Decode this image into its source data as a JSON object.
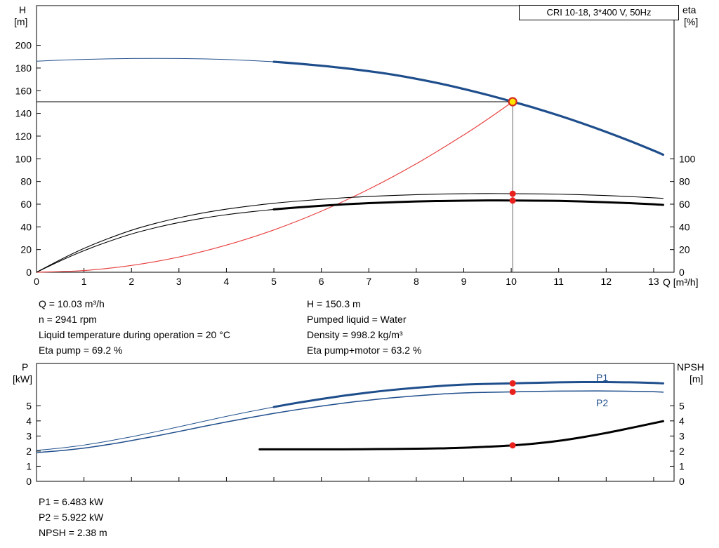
{
  "labels": {
    "h": "H",
    "h_unit": "[m]",
    "eta": "eta",
    "eta_unit": "[%]",
    "q": "Q [m³/h]",
    "p": "P",
    "p_unit": "[kW]",
    "npsh": "NPSH",
    "npsh_unit": "[m]",
    "p1": "P1",
    "p2": "P2"
  },
  "annotations": {
    "top_left": [
      "Q = 10.03 m³/h",
      "n = 2941 rpm",
      "Liquid temperature during operation = 20 °C",
      "Eta pump = 69.2 %"
    ],
    "top_right": [
      "H = 150.3 m",
      "Pumped liquid = Water",
      "Density = 998.2 kg/m³",
      "Eta pump+motor = 63.2 %"
    ],
    "bottom": [
      "P1 = 6.483 kW",
      "P2 = 5.922 kW",
      "NPSH = 2.38 m"
    ]
  },
  "chart_data": [
    {
      "type": "line",
      "title": "CRI 10-18, 3*400 V, 50Hz",
      "x_axis": {
        "label": "Q [m³/h]",
        "min": 0,
        "max": 13.43,
        "ticks": [
          0,
          1,
          2,
          3,
          4,
          5,
          6,
          7,
          8,
          9,
          10,
          11,
          12,
          13
        ]
      },
      "y_left": {
        "label": "H [m]",
        "min": 0,
        "max": 235,
        "ticks": [
          0,
          20,
          40,
          60,
          80,
          100,
          120,
          140,
          160,
          180,
          200
        ]
      },
      "y_right": {
        "label": "eta [%]",
        "min": 0,
        "max": 235,
        "ticks": [
          0,
          20,
          40,
          60,
          80,
          100
        ]
      },
      "grid": false,
      "legend": "none",
      "duty_point": {
        "q": 10.03,
        "h": 150.3,
        "eta_pump": 69.2,
        "eta_pump_motor": 63.2
      },
      "series": [
        {
          "name": "head-curve-thin",
          "color": "#1f4e8c",
          "width": 1,
          "points": [
            [
              0,
              186
            ],
            [
              0.5,
              186.9
            ],
            [
              1,
              187.6
            ],
            [
              1.5,
              188.1
            ],
            [
              2,
              188.4
            ],
            [
              2.5,
              188.5
            ],
            [
              3,
              188.4
            ],
            [
              3.5,
              188.1
            ],
            [
              4,
              187.5
            ],
            [
              4.5,
              186.6
            ],
            [
              5,
              185.5
            ]
          ]
        },
        {
          "name": "head-curve",
          "color": "#1f4e8c",
          "width": 3.2,
          "points": [
            [
              5,
              185.5
            ],
            [
              5.5,
              183.9
            ],
            [
              6,
              182
            ],
            [
              6.5,
              179.8
            ],
            [
              7,
              177.2
            ],
            [
              7.5,
              174.2
            ],
            [
              8,
              170.5
            ],
            [
              8.5,
              166.3
            ],
            [
              9,
              161.5
            ],
            [
              9.5,
              156.3
            ],
            [
              10.03,
              150.3
            ],
            [
              10.5,
              144.7
            ],
            [
              11,
              138.2
            ],
            [
              11.5,
              131.2
            ],
            [
              12,
              123.7
            ],
            [
              12.5,
              115.7
            ],
            [
              13,
              107.2
            ],
            [
              13.2,
              103.6
            ]
          ]
        },
        {
          "name": "system-curve",
          "color": "#e84040",
          "width": 1.2,
          "points": [
            [
              0,
              0
            ],
            [
              1,
              1.5
            ],
            [
              2,
              6
            ],
            [
              3,
              13.4
            ],
            [
              4,
              23.9
            ],
            [
              5,
              37.3
            ],
            [
              6,
              53.8
            ],
            [
              7,
              73.2
            ],
            [
              8,
              95.6
            ],
            [
              9,
              121
            ],
            [
              9.5,
              134.8
            ],
            [
              10.03,
              150.3
            ]
          ]
        },
        {
          "name": "eta-pump-curve",
          "color": "#000000",
          "width": 1.1,
          "points": [
            [
              0,
              0
            ],
            [
              0.5,
              11
            ],
            [
              1,
              21
            ],
            [
              1.5,
              29.5
            ],
            [
              2,
              37
            ],
            [
              2.5,
              43
            ],
            [
              3,
              48
            ],
            [
              3.5,
              52.2
            ],
            [
              4,
              55.6
            ],
            [
              4.5,
              58.4
            ],
            [
              5,
              60.8
            ],
            [
              5.5,
              62.7
            ],
            [
              6,
              64.3
            ],
            [
              6.5,
              65.7
            ],
            [
              7,
              66.8
            ],
            [
              7.5,
              67.7
            ],
            [
              8,
              68.4
            ],
            [
              8.5,
              68.9
            ],
            [
              9,
              69.2
            ],
            [
              9.5,
              69.4
            ],
            [
              10.03,
              69.2
            ],
            [
              10.5,
              69.1
            ],
            [
              11,
              68.8
            ],
            [
              11.5,
              68.3
            ],
            [
              12,
              67.6
            ],
            [
              12.5,
              66.7
            ],
            [
              13,
              65.6
            ],
            [
              13.2,
              65.1
            ]
          ]
        },
        {
          "name": "eta-pump-motor-curve-thin",
          "color": "#000000",
          "width": 1.1,
          "points": [
            [
              0,
              0
            ],
            [
              0.5,
              10
            ],
            [
              1,
              19
            ],
            [
              1.5,
              26.8
            ],
            [
              2,
              33.7
            ],
            [
              2.5,
              39.2
            ],
            [
              3,
              43.8
            ],
            [
              3.5,
              47.6
            ],
            [
              4,
              50.7
            ],
            [
              4.5,
              53.2
            ],
            [
              5,
              55.4
            ]
          ]
        },
        {
          "name": "eta-pump-motor-curve",
          "color": "#000000",
          "width": 3,
          "points": [
            [
              5,
              55.4
            ],
            [
              5.5,
              57.1
            ],
            [
              6,
              58.6
            ],
            [
              6.5,
              59.9
            ],
            [
              7,
              60.9
            ],
            [
              7.5,
              61.7
            ],
            [
              8,
              62.4
            ],
            [
              8.5,
              62.8
            ],
            [
              9,
              63.1
            ],
            [
              9.5,
              63.3
            ],
            [
              10.03,
              63.2
            ],
            [
              10.5,
              63.1
            ],
            [
              11,
              62.9
            ],
            [
              11.5,
              62.4
            ],
            [
              12,
              61.7
            ],
            [
              12.5,
              60.9
            ],
            [
              13,
              59.9
            ],
            [
              13.2,
              59.4
            ]
          ]
        }
      ],
      "ref_lines": [
        {
          "type": "h",
          "y": 150.3,
          "x1": 0,
          "x2": 10.03,
          "color": "#000000",
          "width": 1
        },
        {
          "type": "v",
          "x": 10.03,
          "y1": 0,
          "y2": 150.3,
          "color": "#666666",
          "width": 1
        }
      ],
      "markers": [
        {
          "name": "eta-pump-dot",
          "x": 10.03,
          "y": 69.2,
          "r": 4.5,
          "fill": "#e8211d"
        },
        {
          "name": "eta-pump-motor-dot",
          "x": 10.03,
          "y": 63.2,
          "r": 4.5,
          "fill": "#e8211d"
        },
        {
          "name": "duty-point",
          "x": 10.03,
          "y": 150.3,
          "r": 5.5,
          "fill": "#ffe400",
          "stroke": "#d42a1e",
          "stroke_width": 2.2
        }
      ]
    },
    {
      "type": "line",
      "title": "",
      "x_axis": {
        "label": "",
        "min": 0,
        "max": 13.43,
        "ticks": [
          0,
          1,
          2,
          3,
          4,
          5,
          6,
          7,
          8,
          9,
          10,
          11,
          12,
          13
        ]
      },
      "y_left": {
        "label": "P [kW]",
        "min": 0,
        "max": 7.8,
        "ticks": [
          0,
          1,
          2,
          3,
          4,
          5
        ]
      },
      "y_right": {
        "label": "NPSH [m]",
        "min": 0,
        "max": 7.8,
        "ticks": [
          0,
          1,
          2,
          3,
          4,
          5
        ]
      },
      "grid": false,
      "legend": "inline",
      "duty_point": {
        "q": 10.03,
        "p1_kw": 6.483,
        "p2_kw": 5.922,
        "npsh_m": 2.38
      },
      "series": [
        {
          "name": "p1-curve-thin",
          "color": "#1f4e8c",
          "width": 1,
          "points": [
            [
              0,
              2.05
            ],
            [
              0.5,
              2.2
            ],
            [
              1,
              2.4
            ],
            [
              1.5,
              2.66
            ],
            [
              2,
              2.95
            ],
            [
              2.5,
              3.27
            ],
            [
              3,
              3.61
            ],
            [
              3.5,
              3.96
            ],
            [
              4,
              4.3
            ],
            [
              4.5,
              4.62
            ],
            [
              5,
              4.92
            ]
          ]
        },
        {
          "name": "p1-curve",
          "color": "#1f4e8c",
          "width": 3,
          "points": [
            [
              5,
              4.92
            ],
            [
              5.5,
              5.2
            ],
            [
              6,
              5.45
            ],
            [
              6.5,
              5.68
            ],
            [
              7,
              5.88
            ],
            [
              7.5,
              6.05
            ],
            [
              8,
              6.19
            ],
            [
              8.5,
              6.31
            ],
            [
              9,
              6.4
            ],
            [
              9.5,
              6.45
            ],
            [
              10.03,
              6.483
            ],
            [
              10.5,
              6.52
            ],
            [
              11,
              6.55
            ],
            [
              11.5,
              6.57
            ],
            [
              12,
              6.57
            ],
            [
              12.5,
              6.55
            ],
            [
              13,
              6.51
            ],
            [
              13.2,
              6.48
            ]
          ]
        },
        {
          "name": "p2-curve",
          "color": "#1f4e8c",
          "width": 1.5,
          "points": [
            [
              0,
              1.9
            ],
            [
              0.5,
              2.03
            ],
            [
              1,
              2.2
            ],
            [
              1.5,
              2.43
            ],
            [
              2,
              2.7
            ],
            [
              2.5,
              2.99
            ],
            [
              3,
              3.3
            ],
            [
              3.5,
              3.62
            ],
            [
              4,
              3.93
            ],
            [
              4.5,
              4.22
            ],
            [
              5,
              4.5
            ],
            [
              5.5,
              4.75
            ],
            [
              6,
              4.98
            ],
            [
              6.5,
              5.19
            ],
            [
              7,
              5.37
            ],
            [
              7.5,
              5.53
            ],
            [
              8,
              5.66
            ],
            [
              8.5,
              5.77
            ],
            [
              9,
              5.85
            ],
            [
              9.5,
              5.89
            ],
            [
              10.03,
              5.922
            ],
            [
              10.5,
              5.95
            ],
            [
              11,
              5.97
            ],
            [
              11.5,
              5.98
            ],
            [
              12,
              5.98
            ],
            [
              12.5,
              5.96
            ],
            [
              13,
              5.93
            ],
            [
              13.2,
              5.9
            ]
          ]
        },
        {
          "name": "npsh-curve",
          "color": "#000000",
          "width": 3,
          "points": [
            [
              4.7,
              2.12
            ],
            [
              5,
              2.12
            ],
            [
              5.5,
              2.12
            ],
            [
              6,
              2.12
            ],
            [
              6.5,
              2.12
            ],
            [
              7,
              2.13
            ],
            [
              7.5,
              2.14
            ],
            [
              8,
              2.16
            ],
            [
              8.5,
              2.18
            ],
            [
              9,
              2.22
            ],
            [
              9.5,
              2.29
            ],
            [
              10.03,
              2.38
            ],
            [
              10.5,
              2.5
            ],
            [
              11,
              2.68
            ],
            [
              11.5,
              2.92
            ],
            [
              12,
              3.2
            ],
            [
              12.5,
              3.52
            ],
            [
              13,
              3.85
            ],
            [
              13.2,
              3.98
            ]
          ]
        }
      ],
      "ref_lines": [],
      "markers": [
        {
          "name": "p1-dot",
          "x": 10.03,
          "y": 6.483,
          "r": 4.5,
          "fill": "#e8211d"
        },
        {
          "name": "p2-dot",
          "x": 10.03,
          "y": 5.922,
          "r": 4.5,
          "fill": "#e8211d"
        },
        {
          "name": "npsh-dot",
          "x": 10.03,
          "y": 2.38,
          "r": 4.5,
          "fill": "#e8211d"
        }
      ]
    }
  ]
}
